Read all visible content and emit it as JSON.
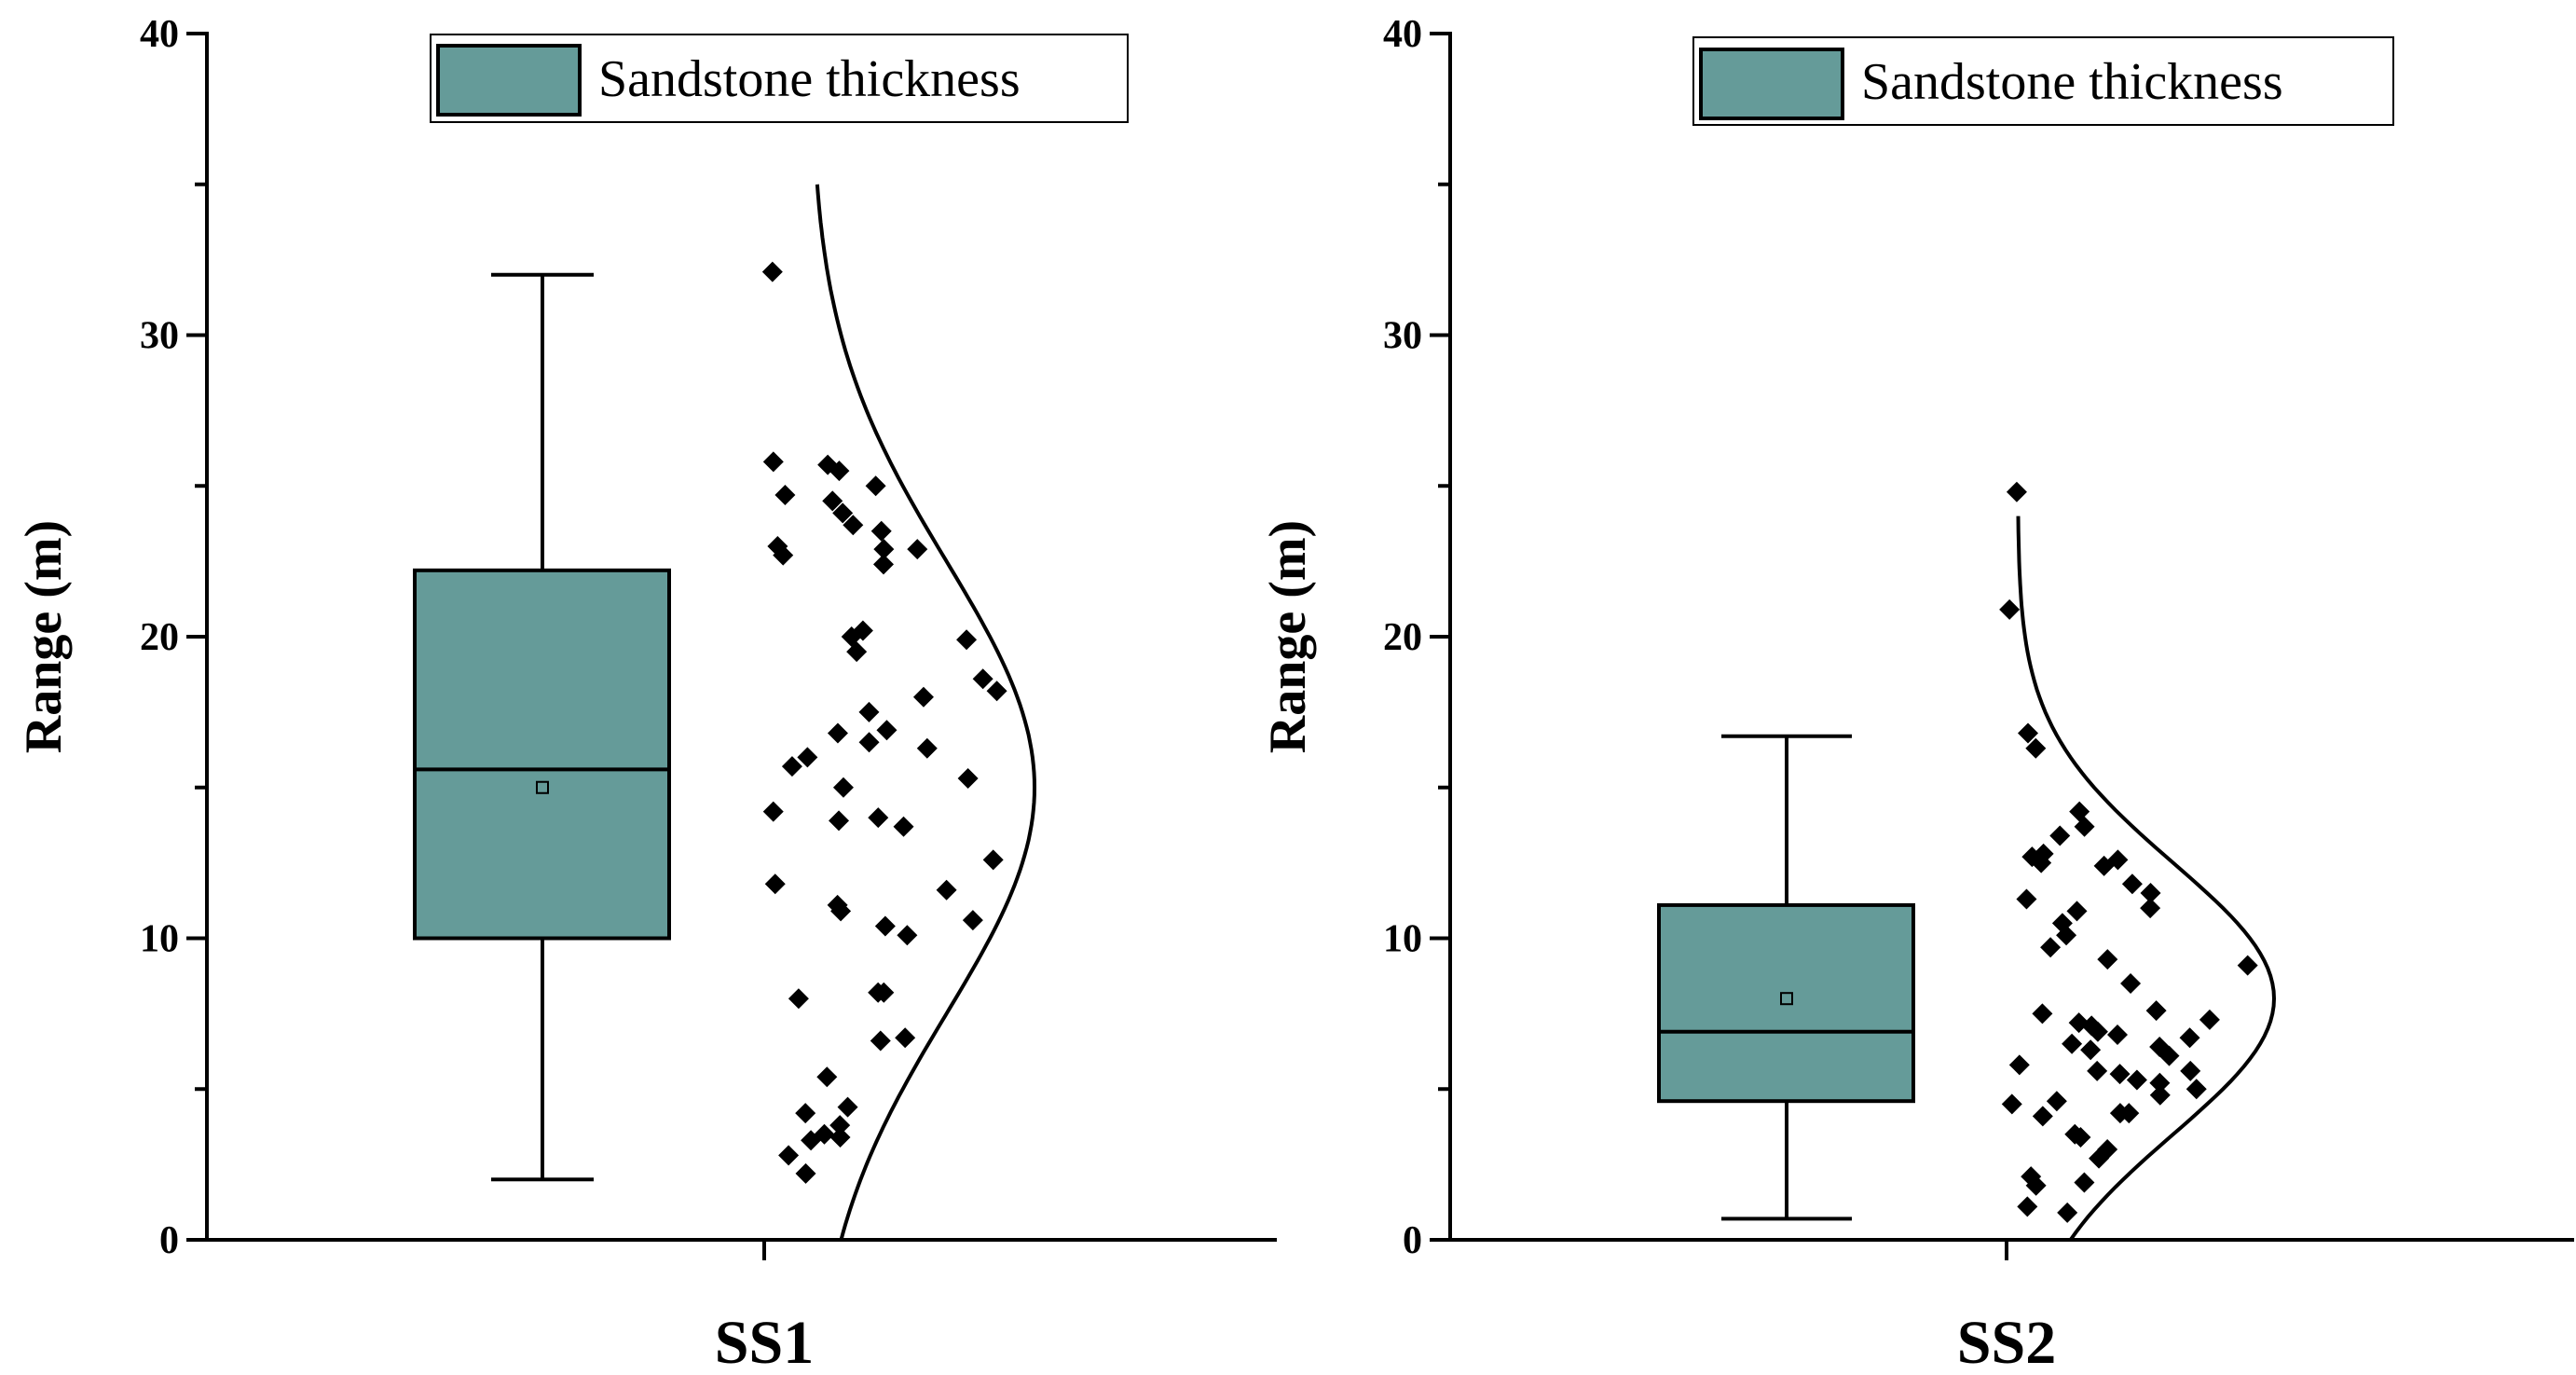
{
  "colors": {
    "box_fill": "#659B99",
    "ink": "#000000",
    "background": "#FFFFFF"
  },
  "chart_data": [
    {
      "type": "box",
      "category": "SS1",
      "ylabel": "Range (m)",
      "ylim": [
        0,
        40
      ],
      "yticks": [
        0,
        10,
        20,
        30,
        40
      ],
      "legend": {
        "label": "Sandstone thickness",
        "position": "top-center"
      },
      "stats": {
        "min": 2.0,
        "q1": 10.0,
        "median": 15.6,
        "q3": 22.2,
        "max": 32.0,
        "mean": 15.0
      },
      "points": [
        32.1,
        25.8,
        25.7,
        25.5,
        25.0,
        24.7,
        24.5,
        24.1,
        23.7,
        23.5,
        23.0,
        22.9,
        22.9,
        22.7,
        22.4,
        20.2,
        20.0,
        19.9,
        19.5,
        18.6,
        18.2,
        18.0,
        17.5,
        16.9,
        16.8,
        16.5,
        16.3,
        16.0,
        15.7,
        15.3,
        15.0,
        14.2,
        14.0,
        13.9,
        13.7,
        12.6,
        11.8,
        11.6,
        11.1,
        10.9,
        10.6,
        10.4,
        10.1,
        8.2,
        8.2,
        8.0,
        6.7,
        6.6,
        5.4,
        4.4,
        4.2,
        3.8,
        3.5,
        3.4,
        3.3,
        2.8,
        2.2
      ],
      "distribution": {
        "kind": "normal",
        "mean": 15.0,
        "sd": 7.5,
        "range": [
          0,
          35
        ]
      }
    },
    {
      "type": "box",
      "category": "SS2",
      "ylabel": "Range (m)",
      "ylim": [
        0,
        40
      ],
      "yticks": [
        0,
        10,
        20,
        30,
        40
      ],
      "legend": {
        "label": "Sandstone thickness",
        "position": "top-center"
      },
      "stats": {
        "min": 0.7,
        "q1": 4.6,
        "median": 6.9,
        "q3": 11.1,
        "max": 16.7,
        "mean": 8.0
      },
      "points": [
        24.8,
        20.9,
        16.8,
        16.3,
        14.2,
        13.7,
        13.4,
        12.8,
        12.7,
        12.6,
        12.5,
        12.4,
        11.8,
        11.5,
        11.3,
        11.0,
        10.9,
        10.5,
        10.1,
        9.7,
        9.3,
        9.1,
        8.5,
        7.6,
        7.5,
        7.3,
        7.2,
        7.1,
        6.9,
        6.8,
        6.7,
        6.5,
        6.4,
        6.3,
        6.1,
        5.8,
        5.6,
        5.6,
        5.5,
        5.3,
        5.2,
        5.0,
        4.8,
        4.6,
        4.5,
        4.2,
        4.2,
        4.1,
        3.5,
        3.4,
        3.0,
        2.7,
        2.1,
        1.9,
        1.8,
        1.1,
        0.9
      ],
      "distribution": {
        "kind": "normal",
        "mean": 8.0,
        "sd": 4.5,
        "range": [
          0,
          24
        ]
      }
    }
  ]
}
